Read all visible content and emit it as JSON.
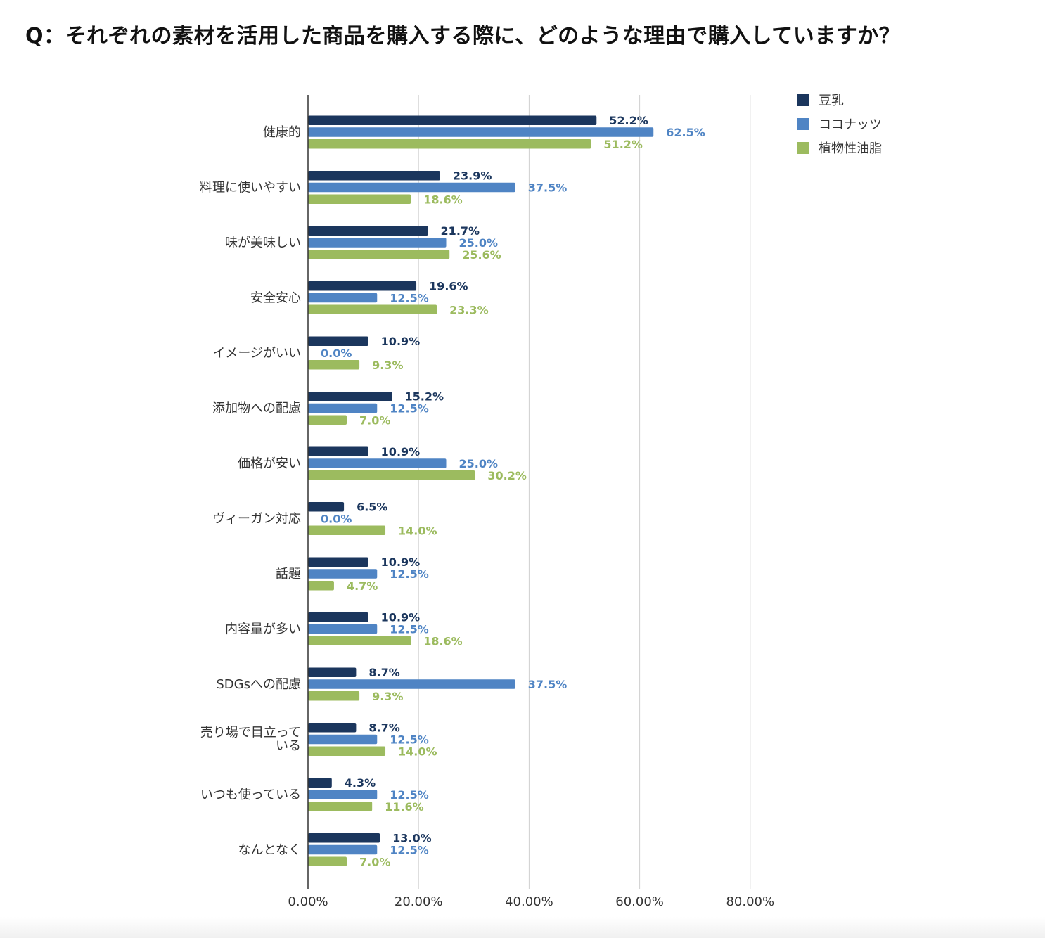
{
  "title": "Q：それぞれの素材を活用した商品を購入する際に、どのような理由で購入していますか？",
  "chart_data": {
    "type": "bar",
    "orientation": "horizontal",
    "categories": [
      "健康的",
      "料理に使いやすい",
      "味が美味しい",
      "安全安心",
      "イメージがいい",
      "添加物への配慮",
      "価格が安い",
      "ヴィーガン対応",
      "話題",
      "内容量が多い",
      "SDGsへの配慮",
      "売り場で目立っている",
      "いつも使っている",
      "なんとなく"
    ],
    "series": [
      {
        "name": "豆乳",
        "color": "#1b365d",
        "values": [
          52.2,
          23.9,
          21.7,
          19.6,
          10.9,
          15.2,
          10.9,
          6.5,
          10.9,
          10.9,
          8.7,
          8.7,
          4.3,
          13.0
        ]
      },
      {
        "name": "ココナッツ",
        "color": "#4f84c4",
        "values": [
          62.5,
          37.5,
          25.0,
          12.5,
          0.0,
          12.5,
          25.0,
          0.0,
          12.5,
          12.5,
          37.5,
          12.5,
          12.5,
          12.5
        ]
      },
      {
        "name": "植物性油脂",
        "color": "#9cbb5f",
        "values": [
          51.2,
          18.6,
          25.6,
          23.3,
          9.3,
          7.0,
          30.2,
          14.0,
          4.7,
          18.6,
          9.3,
          14.0,
          11.6,
          7.0
        ]
      }
    ],
    "xlim": [
      0,
      80
    ],
    "xticks": [
      "0.00%",
      "20.00%",
      "40.00%",
      "60.00%",
      "80.00%"
    ],
    "data_label_suffix": "%",
    "grid": "vertical",
    "legend_position": "top-right"
  }
}
